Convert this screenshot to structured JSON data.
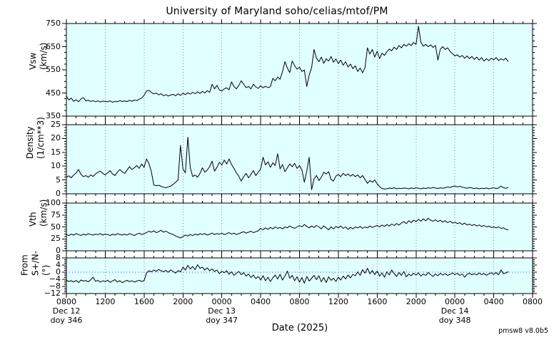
{
  "title": "University of Maryland  soho/celias/mtof/PM",
  "xlabel": "Date (2025)",
  "version": "pmsw8 v8.0b5",
  "colors": {
    "panel_bg": "#e0ffff",
    "grid": "#909090",
    "trace": "#000000",
    "zero_line": "#4040ff",
    "frame": "#000000"
  },
  "chart_data": {
    "type": "line",
    "x_axis": {
      "unit": "hours from Dec 12 2025 00:00 UT",
      "start": 8,
      "end": 56,
      "major_step": 4,
      "minor_step": 1,
      "tick_labels": [
        "0800",
        "1200",
        "1600",
        "2000",
        "0000",
        "0400",
        "0800",
        "1200",
        "1600",
        "2000",
        "0000",
        "0400",
        "0800"
      ]
    },
    "date_annotations": [
      {
        "t": 8,
        "lines": [
          "Dec 12",
          "doy 346"
        ]
      },
      {
        "t": 24,
        "lines": [
          "Dec 13",
          "doy 347"
        ]
      },
      {
        "t": 48,
        "lines": [
          "Dec 14",
          "doy 348"
        ]
      }
    ],
    "panels": [
      {
        "name": "vsw",
        "ylabel": [
          "Vsw",
          "(km/s)"
        ],
        "ylim": [
          350,
          750
        ],
        "ytick_values": [
          350,
          450,
          550,
          650,
          750
        ],
        "ytick_labels": [
          "350",
          "450",
          "550",
          "650",
          "750"
        ],
        "y_minor_step": 25,
        "zero_line": false,
        "series": {
          "t0": 8,
          "dt": 0.25,
          "values": [
            437,
            420,
            428,
            414,
            421,
            412,
            424,
            430,
            416,
            419,
            413,
            417,
            412,
            416,
            411,
            415,
            413,
            412,
            416,
            410,
            414,
            412,
            417,
            413,
            416,
            413,
            418,
            414,
            420,
            417,
            423,
            428,
            440,
            458,
            462,
            452,
            446,
            450,
            442,
            447,
            438,
            443,
            437,
            441,
            444,
            438,
            446,
            440,
            449,
            443,
            451,
            445,
            453,
            447,
            455,
            448,
            457,
            450,
            460,
            453,
            488,
            468,
            483,
            463,
            459,
            468,
            472,
            464,
            498,
            478,
            468,
            483,
            503,
            488,
            473,
            478,
            468,
            488,
            476,
            470,
            481,
            472,
            479,
            473,
            477,
            513,
            503,
            519,
            509,
            542,
            585,
            558,
            538,
            588,
            568,
            553,
            561,
            543,
            549,
            478,
            528,
            560,
            638,
            600,
            585,
            605,
            578,
            598,
            588,
            608,
            583,
            597,
            577,
            592,
            570,
            585,
            562,
            575,
            555,
            567,
            543,
            558,
            537,
            560,
            645,
            618,
            638,
            605,
            630,
            598,
            622,
            612,
            628,
            640,
            632,
            648,
            638,
            655,
            645,
            660,
            652,
            663,
            655,
            668,
            660,
            738,
            668,
            652,
            660,
            650,
            658,
            647,
            655,
            592,
            640,
            650,
            638,
            645,
            630,
            620,
            610,
            615,
            605,
            612,
            600,
            610,
            598,
            608,
            595,
            605,
            592,
            603,
            588,
            598,
            590,
            600,
            593,
            603,
            590,
            598,
            592,
            600,
            585
          ]
        }
      },
      {
        "name": "density",
        "ylabel": [
          "Density",
          "(1/cm**3)"
        ],
        "ylim": [
          0,
          25
        ],
        "ytick_values": [
          0,
          5,
          10,
          15,
          20,
          25
        ],
        "ytick_labels": [
          "0",
          "5",
          "10",
          "15",
          "20",
          "25"
        ],
        "y_minor_step": 1,
        "zero_line": false,
        "series": {
          "t0": 8,
          "dt": 0.25,
          "values": [
            6.0,
            6.5,
            5.8,
            6.8,
            7.5,
            8.8,
            7.0,
            6.2,
            6.6,
            6.0,
            6.8,
            6.3,
            7.2,
            7.8,
            8.2,
            7.4,
            6.8,
            7.6,
            8.4,
            7.2,
            6.6,
            7.8,
            8.8,
            8.0,
            7.4,
            8.6,
            9.8,
            8.8,
            9.4,
            10.2,
            9.2,
            10.8,
            9.6,
            12.6,
            11.0,
            8.0,
            3.2,
            2.9,
            3.1,
            2.7,
            2.4,
            2.2,
            2.5,
            2.8,
            3.4,
            4.2,
            5.0,
            17.5,
            9.0,
            7.6,
            20.5,
            9.5,
            6.2,
            6.8,
            6.0,
            7.4,
            9.4,
            7.8,
            8.6,
            9.8,
            11.8,
            8.2,
            9.6,
            11.4,
            10.4,
            12.2,
            10.8,
            12.6,
            10.6,
            9.2,
            7.6,
            6.4,
            4.6,
            6.2,
            7.4,
            5.8,
            7.0,
            8.4,
            6.6,
            7.8,
            9.0,
            13.2,
            10.4,
            11.6,
            9.6,
            11.2,
            10.2,
            14.5,
            9.0,
            10.6,
            8.0,
            9.4,
            10.8,
            9.8,
            11.0,
            9.2,
            10.2,
            8.6,
            4.2,
            8.2,
            13.2,
            1.5,
            5.4,
            6.6,
            4.8,
            6.0,
            7.8,
            7.2,
            8.0,
            5.2,
            4.6,
            6.4,
            7.0,
            6.2,
            7.4,
            6.6,
            7.2,
            6.4,
            7.0,
            6.2,
            6.8,
            5.8,
            6.6,
            5.2,
            3.8,
            4.8,
            4.2,
            5.0,
            3.6,
            2.6,
            1.9,
            1.7,
            1.8,
            2.1,
            1.9,
            2.2,
            1.8,
            2.0,
            1.9,
            2.1,
            2.0,
            1.8,
            2.1,
            1.9,
            2.2,
            2.0,
            1.8,
            2.1,
            1.9,
            2.2,
            2.0,
            2.3,
            2.1,
            1.9,
            2.2,
            2.0,
            2.2,
            2.5,
            2.3,
            2.6,
            2.8,
            2.5,
            2.7,
            2.4,
            2.2,
            2.0,
            2.3,
            2.1,
            1.9,
            2.1,
            1.8,
            2.0,
            1.9,
            2.1,
            1.8,
            2.0,
            2.2,
            1.9,
            2.1,
            2.8,
            2.2,
            2.0,
            2.3
          ]
        }
      },
      {
        "name": "vth",
        "ylabel": [
          "Vth",
          "(km/s)"
        ],
        "ylim": [
          0,
          100
        ],
        "ytick_values": [
          0,
          25,
          50,
          75,
          100
        ],
        "ytick_labels": [
          "0",
          "25",
          "50",
          "75",
          "100"
        ],
        "y_minor_step": 5,
        "zero_line": false,
        "series": {
          "t0": 8,
          "dt": 0.25,
          "values": [
            34,
            32,
            35,
            33,
            36,
            34,
            32,
            35,
            33,
            36,
            34,
            33,
            35,
            34,
            36,
            33,
            35,
            34,
            32,
            35,
            33,
            36,
            34,
            33,
            35,
            33,
            36,
            34,
            32,
            35,
            37,
            34,
            36,
            38,
            41,
            39,
            42,
            38,
            40,
            43,
            39,
            41,
            38,
            36,
            34,
            31,
            29,
            27,
            30,
            33,
            31,
            34,
            32,
            35,
            33,
            36,
            34,
            36,
            33,
            35,
            37,
            34,
            36,
            35,
            37,
            34,
            36,
            38,
            35,
            37,
            34,
            36,
            38,
            40,
            37,
            39,
            41,
            38,
            40,
            42,
            47,
            44,
            48,
            45,
            49,
            46,
            50,
            47,
            49,
            46,
            50,
            48,
            52,
            49,
            47,
            50,
            53,
            50,
            55,
            51,
            48,
            52,
            49,
            53,
            50,
            46,
            52,
            48,
            44,
            50,
            46,
            51,
            48,
            52,
            47,
            50,
            45,
            49,
            46,
            50,
            48,
            51,
            47,
            50,
            48,
            52,
            49,
            51,
            53,
            50,
            54,
            51,
            55,
            52,
            56,
            53,
            57,
            54,
            58,
            61,
            57,
            63,
            59,
            64,
            61,
            66,
            62,
            67,
            63,
            68,
            64,
            62,
            65,
            61,
            64,
            60,
            63,
            59,
            62,
            58,
            60,
            57,
            59,
            55,
            58,
            54,
            56,
            53,
            55,
            52,
            54,
            51,
            53,
            50,
            52,
            49,
            50,
            48,
            50,
            47,
            48,
            45,
            44
          ]
        }
      },
      {
        "name": "from-angle",
        "ylabel": [
          "From",
          "S+/N- (°)"
        ],
        "ylim": [
          -12,
          8
        ],
        "ytick_values": [
          -12,
          -8,
          -4,
          0,
          4,
          8
        ],
        "ytick_labels": [
          "−12",
          "−8",
          "−4",
          "0",
          "4",
          "8"
        ],
        "y_minor_step": 1,
        "zero_line": true,
        "series": {
          "t0": 8,
          "dt": 0.25,
          "values": [
            -4.5,
            -5.2,
            -4.8,
            -5.5,
            -4.6,
            -5.8,
            -4.4,
            -5.0,
            -4.7,
            -5.4,
            -4.3,
            -2.8,
            -5.1,
            -4.6,
            -5.6,
            -4.8,
            -5.3,
            -4.5,
            -5.7,
            -4.9,
            -4.2,
            -5.5,
            -4.8,
            -5.9,
            -5.1,
            -4.6,
            -5.3,
            -4.8,
            -5.6,
            -5.0,
            -4.5,
            -5.2,
            -4.8,
            -0.5,
            0.8,
            0.2,
            1.2,
            0.5,
            1.5,
            0.8,
            0.3,
            1.0,
            0.0,
            1.3,
            0.4,
            -0.5,
            0.9,
            0.2,
            2.8,
            1.2,
            3.8,
            1.8,
            3.2,
            1.4,
            4.2,
            2.2,
            2.8,
            1.2,
            2.4,
            0.8,
            1.8,
            0.4,
            1.2,
            -0.8,
            0.5,
            -0.3,
            0.8,
            -1.2,
            0.2,
            -1.8,
            -0.6,
            0.4,
            -1.4,
            -0.2,
            -2.2,
            -1.0,
            -3.0,
            -1.6,
            -3.6,
            -2.4,
            -4.4,
            -2.0,
            -4.8,
            -2.8,
            -5.2,
            -3.2,
            -1.6,
            -3.8,
            -1.2,
            -4.4,
            -2.2,
            0.6,
            -3.4,
            -1.8,
            -4.8,
            -2.6,
            -5.6,
            -3.0,
            -6.2,
            -2.4,
            -5.0,
            -3.4,
            -1.8,
            -4.2,
            -2.0,
            -5.4,
            -3.0,
            -5.8,
            -2.6,
            -4.6,
            -3.4,
            -5.2,
            -2.8,
            -4.4,
            -2.2,
            -3.8,
            -1.6,
            -3.2,
            -1.2,
            -2.0,
            0.2,
            -1.8,
            1.4,
            -0.6,
            2.2,
            -0.9,
            1.0,
            -1.4,
            0.6,
            -2.2,
            -0.4,
            -2.8,
            0.2,
            -1.6,
            1.2,
            -0.8,
            -2.4,
            -0.2,
            -1.8,
            0.4,
            -2.6,
            -1.0,
            -2.0,
            -0.6,
            -1.6,
            -0.4,
            -2.2,
            -1.0,
            -1.8,
            -0.2,
            -1.4,
            -2.4,
            -1.0,
            -2.0,
            -0.6,
            -1.6,
            -0.8,
            -1.8,
            -1.2,
            -0.4,
            -1.4,
            -0.6,
            -1.8,
            -1.0,
            -2.8,
            -1.2,
            -0.5,
            -1.5,
            -0.8,
            -1.6,
            -0.4,
            -1.4,
            -0.7,
            -1.7,
            -0.9,
            -0.3,
            -1.2,
            -0.2,
            -1.5,
            1.3,
            -0.9,
            -0.4,
            0.2
          ]
        }
      }
    ]
  }
}
